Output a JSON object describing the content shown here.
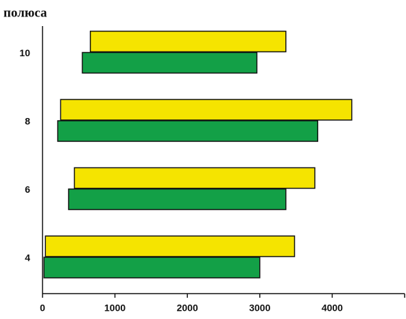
{
  "chart_data": {
    "type": "floating-bar",
    "orientation": "horizontal",
    "title": "полюса",
    "categories": [
      "4",
      "6",
      "8",
      "10"
    ],
    "series": [
      {
        "color": "#f5e400",
        "values": [
          [
            40,
            3480
          ],
          [
            440,
            3760
          ],
          [
            250,
            4270
          ],
          [
            660,
            3360
          ]
        ]
      },
      {
        "color": "#13a047",
        "values": [
          [
            20,
            3000
          ],
          [
            360,
            3360
          ],
          [
            210,
            3800
          ],
          [
            550,
            2960
          ]
        ]
      }
    ],
    "xlim": [
      0,
      5000
    ],
    "xticks": [
      0,
      1000,
      2000,
      3000,
      4000
    ],
    "grid": false
  }
}
